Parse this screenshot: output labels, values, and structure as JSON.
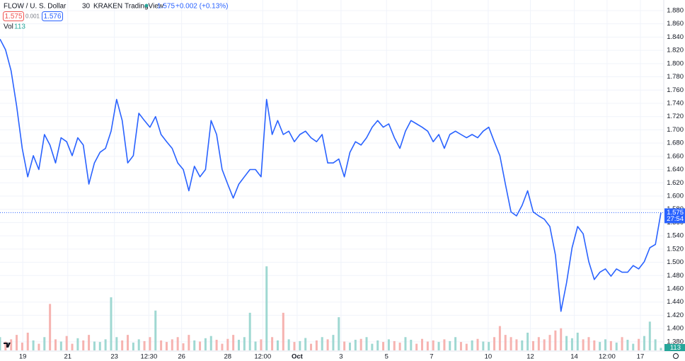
{
  "header": {
    "symbol": "FLOW / U. S. Dollar",
    "interval": "30",
    "exchange": "KRAKEN",
    "source": "TradingView",
    "change": "+0.002 (+0.13%)",
    "spread": "0.001",
    "ask": "1.576",
    "vol_label": "Vol"
  },
  "chart_data": {
    "type": "line",
    "color": "#2962ff",
    "grid": true,
    "values": [
      1.837,
      1.821,
      1.789,
      1.736,
      1.672,
      1.629,
      1.661,
      1.64,
      1.693,
      1.677,
      1.65,
      1.688,
      1.682,
      1.661,
      1.688,
      1.677,
      1.618,
      1.65,
      1.666,
      1.672,
      1.698,
      1.746,
      1.714,
      1.65,
      1.661,
      1.725,
      1.714,
      1.704,
      1.72,
      1.693,
      1.682,
      1.672,
      1.65,
      1.64,
      1.608,
      1.645,
      1.629,
      1.64,
      1.714,
      1.693,
      1.64,
      1.618,
      1.597,
      1.618,
      1.629,
      1.64,
      1.64,
      1.629,
      1.746,
      1.693,
      1.714,
      1.693,
      1.698,
      1.682,
      1.693,
      1.698,
      1.688,
      1.682,
      1.693,
      1.65,
      1.65,
      1.656,
      1.629,
      1.666,
      1.682,
      1.677,
      1.688,
      1.704,
      1.714,
      1.704,
      1.709,
      1.688,
      1.672,
      1.698,
      1.714,
      1.709,
      1.704,
      1.698,
      1.682,
      1.693,
      1.672,
      1.693,
      1.698,
      1.693,
      1.688,
      1.693,
      1.688,
      1.698,
      1.704,
      1.682,
      1.661,
      1.618,
      1.576,
      1.57,
      1.586,
      1.608,
      1.576,
      1.57,
      1.565,
      1.554,
      1.511,
      1.426,
      1.469,
      1.522,
      1.554,
      1.543,
      1.501,
      1.474,
      1.485,
      1.49,
      1.479,
      1.49,
      1.485,
      1.485,
      1.495,
      1.49,
      1.501,
      1.522,
      1.527,
      1.575
    ],
    "xlim": [
      0,
      119
    ],
    "ylim": [
      1.367,
      1.896
    ],
    "yticks": [
      {
        "value": 1.38,
        "label": "1.380"
      },
      {
        "value": 1.4,
        "label": "1.400"
      },
      {
        "value": 1.42,
        "label": "1.420"
      },
      {
        "value": 1.44,
        "label": "1.440"
      },
      {
        "value": 1.46,
        "label": "1.460"
      },
      {
        "value": 1.48,
        "label": "1.480"
      },
      {
        "value": 1.5,
        "label": "1.500"
      },
      {
        "value": 1.52,
        "label": "1.520"
      },
      {
        "value": 1.54,
        "label": "1.540"
      },
      {
        "value": 1.56,
        "label": "1.560"
      },
      {
        "value": 1.58,
        "label": "1.580"
      },
      {
        "value": 1.6,
        "label": "1.600"
      },
      {
        "value": 1.62,
        "label": "1.620"
      },
      {
        "value": 1.64,
        "label": "1.640"
      },
      {
        "value": 1.66,
        "label": "1.660"
      },
      {
        "value": 1.68,
        "label": "1.680"
      },
      {
        "value": 1.7,
        "label": "1.700"
      },
      {
        "value": 1.72,
        "label": "1.720"
      },
      {
        "value": 1.74,
        "label": "1.740"
      },
      {
        "value": 1.76,
        "label": "1.760"
      },
      {
        "value": 1.78,
        "label": "1.780"
      },
      {
        "value": 1.8,
        "label": "1.800"
      },
      {
        "value": 1.82,
        "label": "1.820"
      },
      {
        "value": 1.84,
        "label": "1.840"
      },
      {
        "value": 1.86,
        "label": "1.860"
      },
      {
        "value": 1.88,
        "label": "1.880"
      }
    ],
    "xticks": [
      {
        "value": 4.1,
        "label": "19"
      },
      {
        "value": 12.2,
        "label": "21"
      },
      {
        "value": 20.6,
        "label": "23"
      },
      {
        "value": 26.8,
        "label": "12:30"
      },
      {
        "value": 32.7,
        "label": "26"
      },
      {
        "value": 41.0,
        "label": "28"
      },
      {
        "value": 47.3,
        "label": "12:00"
      },
      {
        "value": 53.5,
        "label": "Oct"
      },
      {
        "value": 61.4,
        "label": "3"
      },
      {
        "value": 69.6,
        "label": "5"
      },
      {
        "value": 77.7,
        "label": "7"
      },
      {
        "value": 87.9,
        "label": "10"
      },
      {
        "value": 95.5,
        "label": "12"
      },
      {
        "value": 103.4,
        "label": "14"
      },
      {
        "value": 109.3,
        "label": "12:00"
      },
      {
        "value": 115.3,
        "label": "17"
      }
    ],
    "countdown": "27:54",
    "volume": {
      "up_color": "#9fd8d2",
      "down_color": "#f6b3b0",
      "ylim": [
        0,
        4000
      ],
      "values": [
        600,
        400,
        500,
        700,
        350,
        800,
        450,
        300,
        600,
        2100,
        500,
        400,
        650,
        300,
        550,
        450,
        700,
        400,
        380,
        500,
        2400,
        600,
        450,
        700,
        350,
        500,
        420,
        600,
        1800,
        450,
        380,
        500,
        600,
        320,
        700,
        450,
        400,
        550,
        650,
        480,
        300,
        520,
        700,
        480,
        600,
        1700,
        400,
        500,
        3800,
        600,
        450,
        1700,
        500,
        380,
        420,
        560,
        300,
        450,
        600,
        500,
        700,
        1500,
        400,
        350,
        480,
        520,
        600,
        300,
        450,
        380,
        500,
        420,
        350,
        600,
        480,
        300,
        520,
        400,
        450,
        380,
        500,
        420,
        600,
        380,
        300,
        450,
        520,
        400,
        380,
        600,
        1100,
        700,
        600,
        500,
        450,
        800,
        420,
        600,
        500,
        700,
        900,
        1000,
        650,
        550,
        800,
        500,
        600,
        450,
        380,
        500,
        420,
        350,
        600,
        480,
        300,
        520,
        650,
        1300,
        500,
        113
      ]
    }
  }
}
